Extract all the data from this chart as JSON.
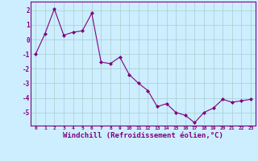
{
  "x": [
    0,
    1,
    2,
    3,
    4,
    5,
    6,
    7,
    8,
    9,
    10,
    11,
    12,
    13,
    14,
    15,
    16,
    17,
    18,
    19,
    20,
    21,
    22,
    23
  ],
  "y": [
    -1.0,
    0.4,
    2.1,
    0.3,
    0.5,
    0.6,
    1.8,
    -1.55,
    -1.65,
    -1.2,
    -2.4,
    -3.0,
    -3.5,
    -4.6,
    -4.4,
    -5.0,
    -5.2,
    -5.7,
    -5.0,
    -4.7,
    -4.1,
    -4.3,
    -4.2,
    -4.1
  ],
  "line_color": "#800080",
  "marker": "D",
  "marker_size": 2,
  "bg_color": "#cceeff",
  "grid_color": "#aacccc",
  "xlabel": "Windchill (Refroidissement éolien,°C)",
  "xlabel_fontsize": 6.5,
  "ylabel_ticks": [
    -5,
    -4,
    -3,
    -2,
    -1,
    0,
    1,
    2
  ],
  "xlim": [
    -0.5,
    23.5
  ],
  "ylim": [
    -5.9,
    2.6
  ],
  "xtick_labels": [
    "0",
    "1",
    "2",
    "3",
    "4",
    "5",
    "6",
    "7",
    "8",
    "9",
    "10",
    "11",
    "12",
    "13",
    "14",
    "15",
    "16",
    "17",
    "18",
    "19",
    "20",
    "21",
    "22",
    "23"
  ]
}
